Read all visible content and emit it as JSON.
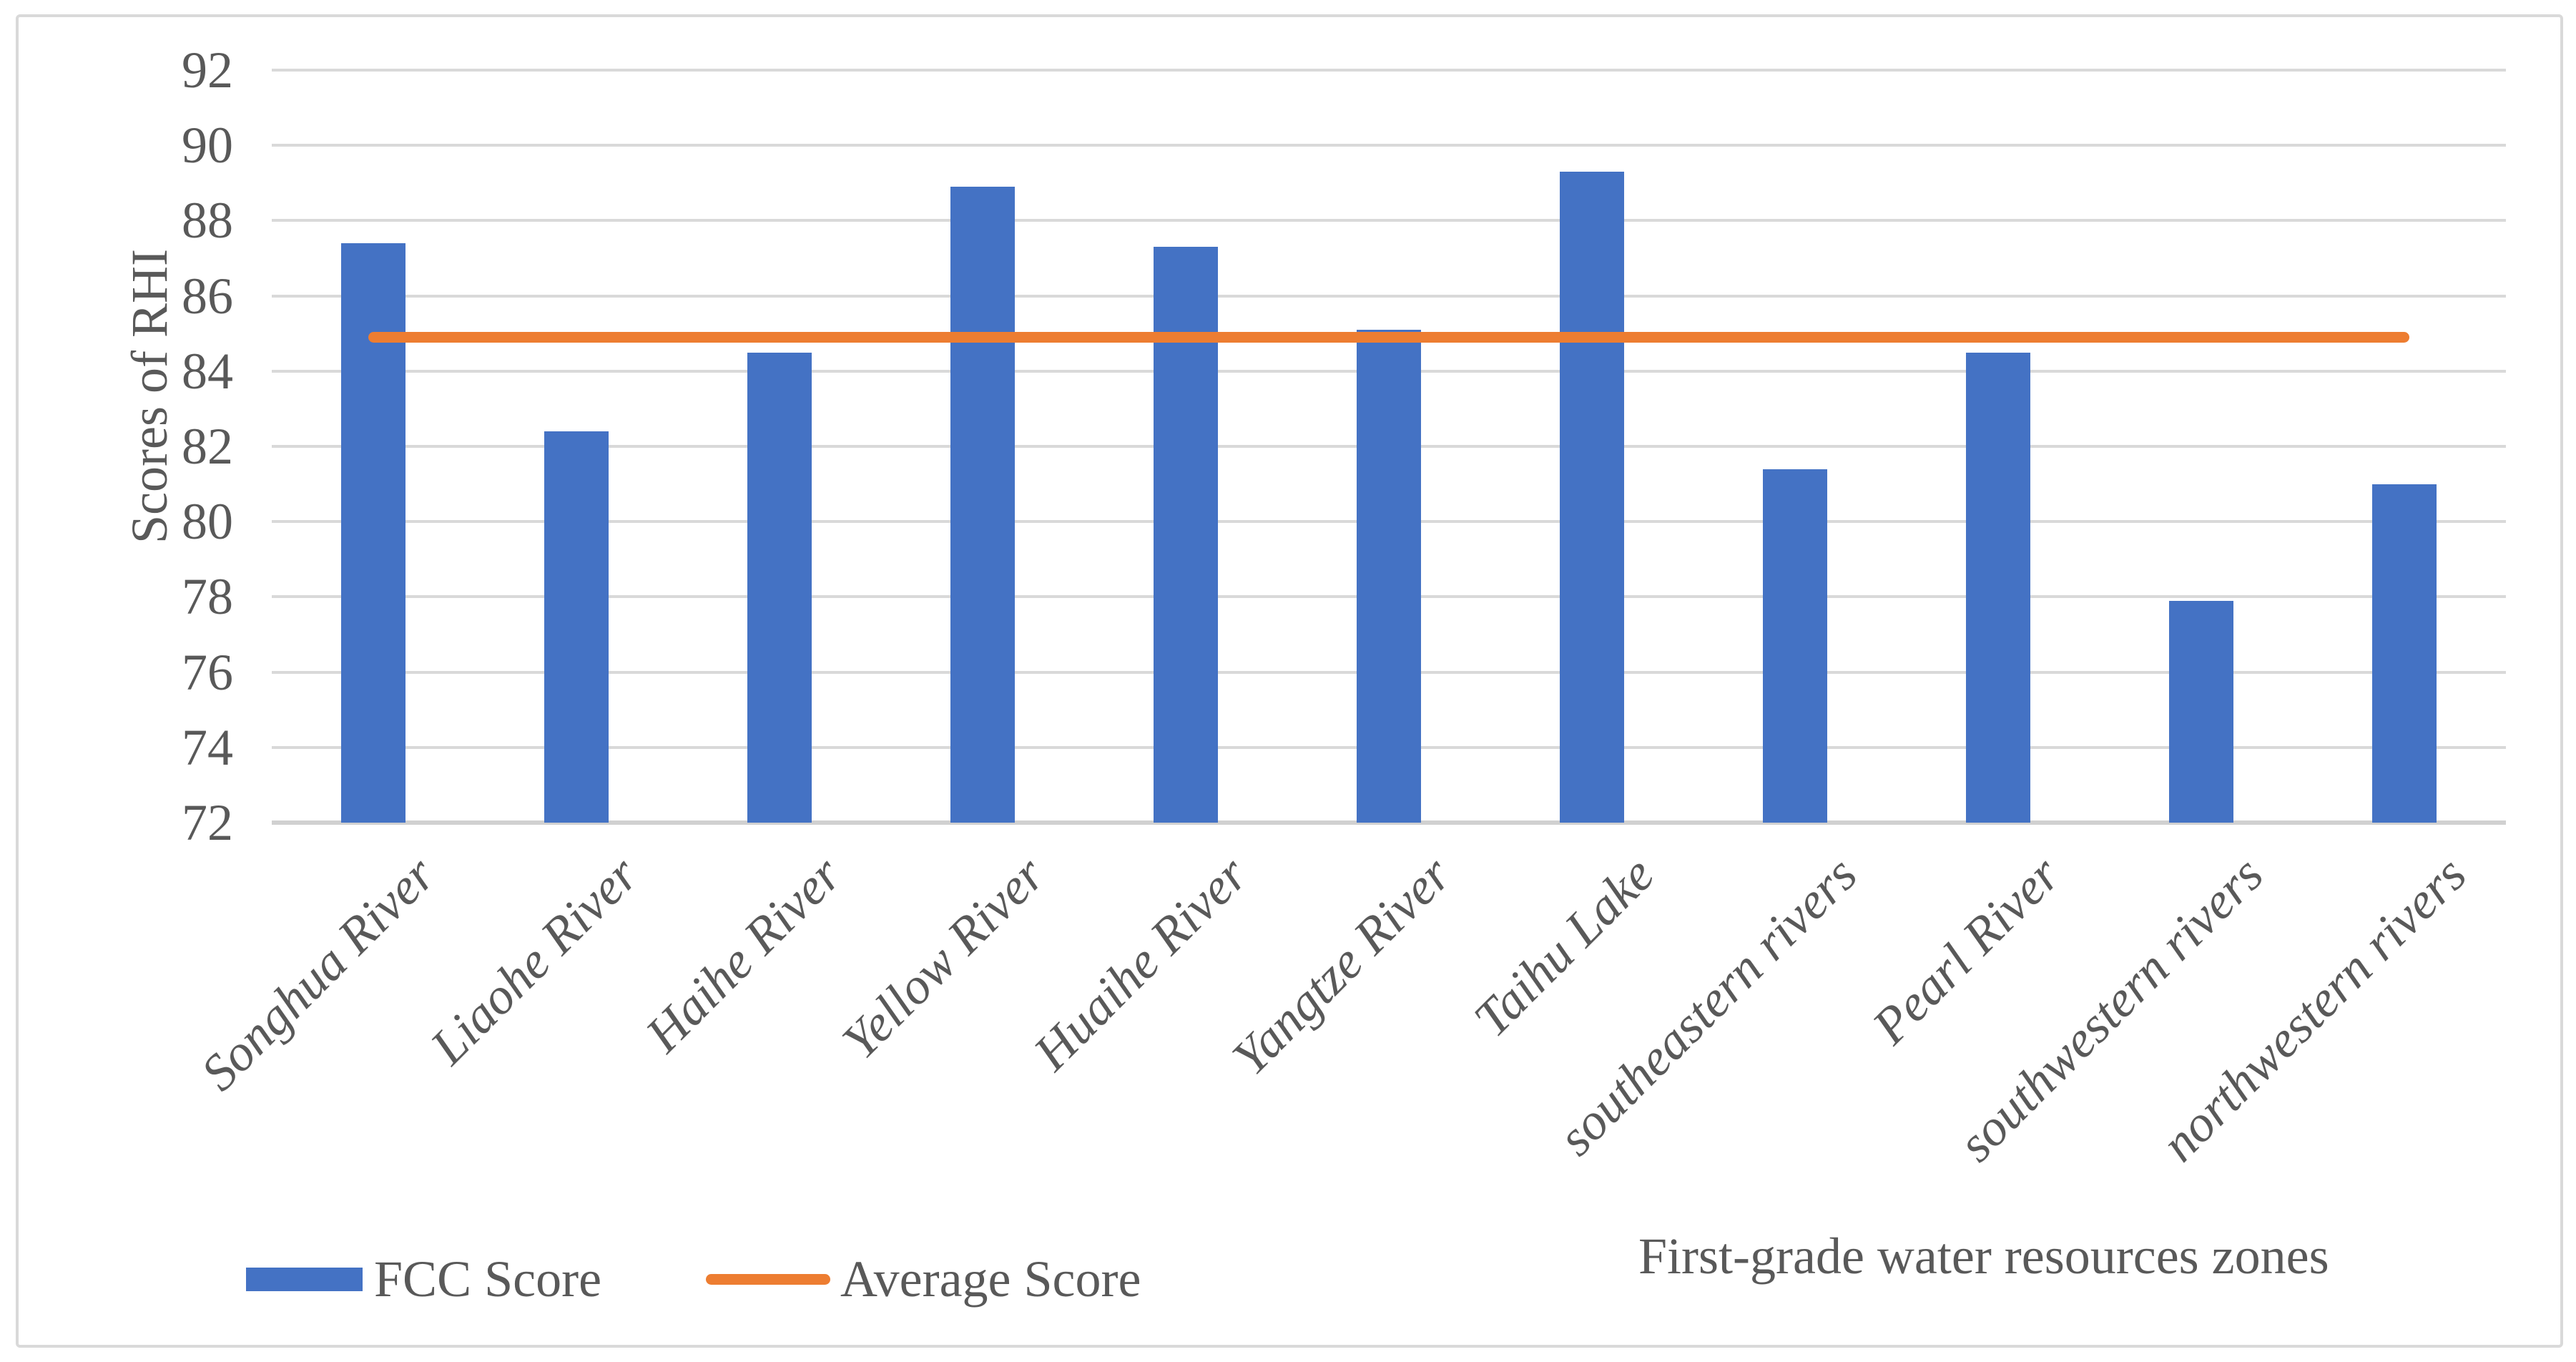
{
  "figure": {
    "background": "#ffffff",
    "border_color": "#D9D9D9"
  },
  "chart_data": {
    "type": "bar",
    "title": "",
    "categories": [
      "Songhua River",
      "Liaohe River",
      "Haihe River",
      "Yellow River",
      "Huaihe River",
      "Yangtze River",
      "Taihu Lake",
      "southeastern rivers",
      "Pearl River",
      "southwestern rivers",
      "northwestern rivers"
    ],
    "series": [
      {
        "name": "FCC Score",
        "type": "bar",
        "color": "#4472C4",
        "values": [
          87.4,
          82.4,
          84.5,
          88.9,
          87.3,
          85.1,
          89.3,
          81.4,
          84.5,
          77.9,
          81.0
        ]
      },
      {
        "name": "Average Score",
        "type": "line",
        "color": "#ED7D31",
        "value": 84.9
      }
    ],
    "xlabel": "First-grade water resources zones",
    "ylabel": "Scores of RHI",
    "ylim": [
      72,
      92
    ],
    "ytick_step": 2,
    "yticks": [
      72,
      74,
      76,
      78,
      80,
      82,
      84,
      86,
      88,
      90,
      92
    ],
    "grid": true,
    "gridline_color": "#D9D9D9",
    "axis_line_color": "#D0D0D0",
    "axis_text_color": "#595959",
    "legend_position": "bottom-left"
  }
}
